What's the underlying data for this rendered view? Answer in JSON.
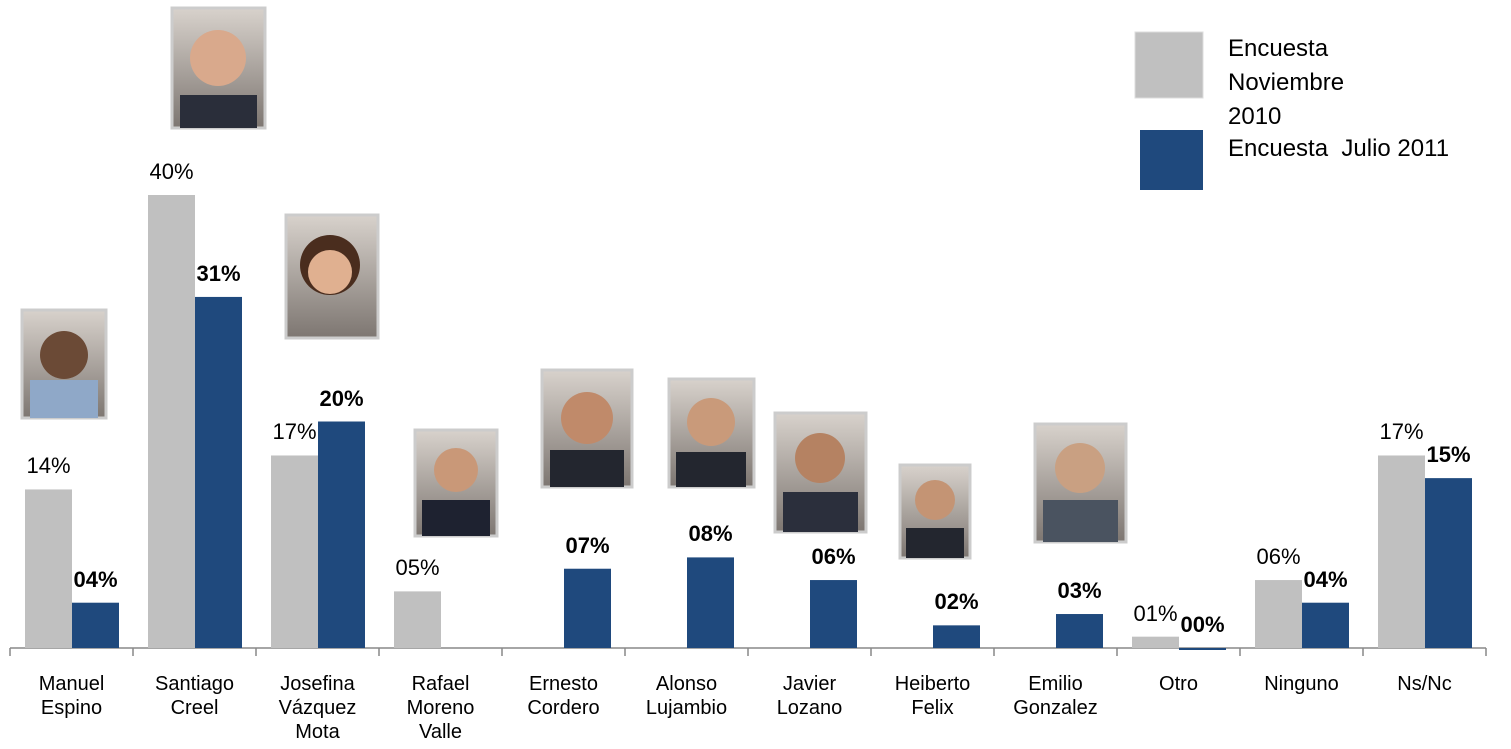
{
  "chart_data": {
    "type": "bar",
    "categories": [
      "Manuel Espino",
      "Santiago Creel",
      "Josefina Vázquez Mota",
      "Rafael Moreno Valle",
      "Ernesto Cordero",
      "Alonso Lujambio",
      "Javier Lozano",
      "Heiberto Felix",
      "Emilio Gonzalez",
      "Otro",
      "Ninguno",
      "Ns/Nc"
    ],
    "series": [
      {
        "name": "Encuesta Noviembre 2010",
        "color": "#c0c0c0",
        "values": [
          14,
          40,
          17,
          5,
          null,
          null,
          null,
          null,
          null,
          1,
          6,
          17
        ],
        "value_labels": [
          "14%",
          "40%",
          "17%",
          "05%",
          null,
          null,
          null,
          null,
          null,
          "01%",
          "06%",
          "17%"
        ]
      },
      {
        "name": "Encuesta  Julio 2011",
        "color": "#1f497d",
        "values": [
          4,
          31,
          20,
          null,
          7,
          8,
          6,
          2,
          3,
          0,
          4,
          15
        ],
        "value_labels": [
          "04%",
          "31%",
          "20%",
          null,
          "07%",
          "08%",
          "06%",
          "02%",
          "03%",
          "00%",
          "04%",
          "15%"
        ]
      }
    ],
    "ylim": [
      0,
      40
    ]
  }
}
